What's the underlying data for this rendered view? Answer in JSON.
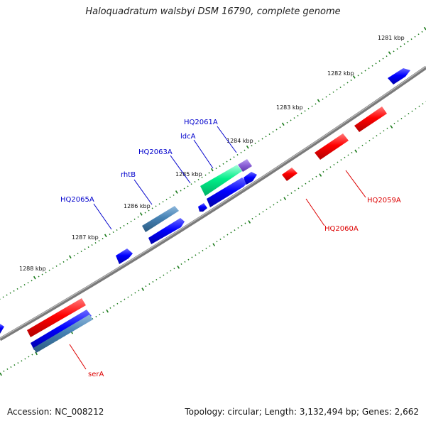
{
  "title": "Haloquadratum walsbyi DSM 16790, complete genome",
  "footer": {
    "accession": "Accession: NC_008212",
    "summary": "Topology: circular; Length: 3,132,494 bp; Genes: 2,662"
  },
  "colors": {
    "backbone": "#808080",
    "tick": "#1a7a1a",
    "forward_label": "#0000cc",
    "reverse_label": "#dd0000",
    "blue": "#0000ff",
    "red": "#ff0000",
    "steel": "#4682b4",
    "green": "#00ee88",
    "purple": "#8a5fd6"
  },
  "kbp_labels": [
    "1281 kbp",
    "1282 kbp",
    "1283 kbp",
    "1284 kbp",
    "1285 kbp",
    "1286 kbp",
    "1287 kbp",
    "1288 kbp"
  ],
  "gene_labels": {
    "forward": [
      "HQ2061A",
      "ldcA",
      "HQ2063A",
      "rhtB",
      "HQ2065A"
    ],
    "reverse": [
      "HQ2059A",
      "HQ2060A",
      "serA"
    ]
  }
}
